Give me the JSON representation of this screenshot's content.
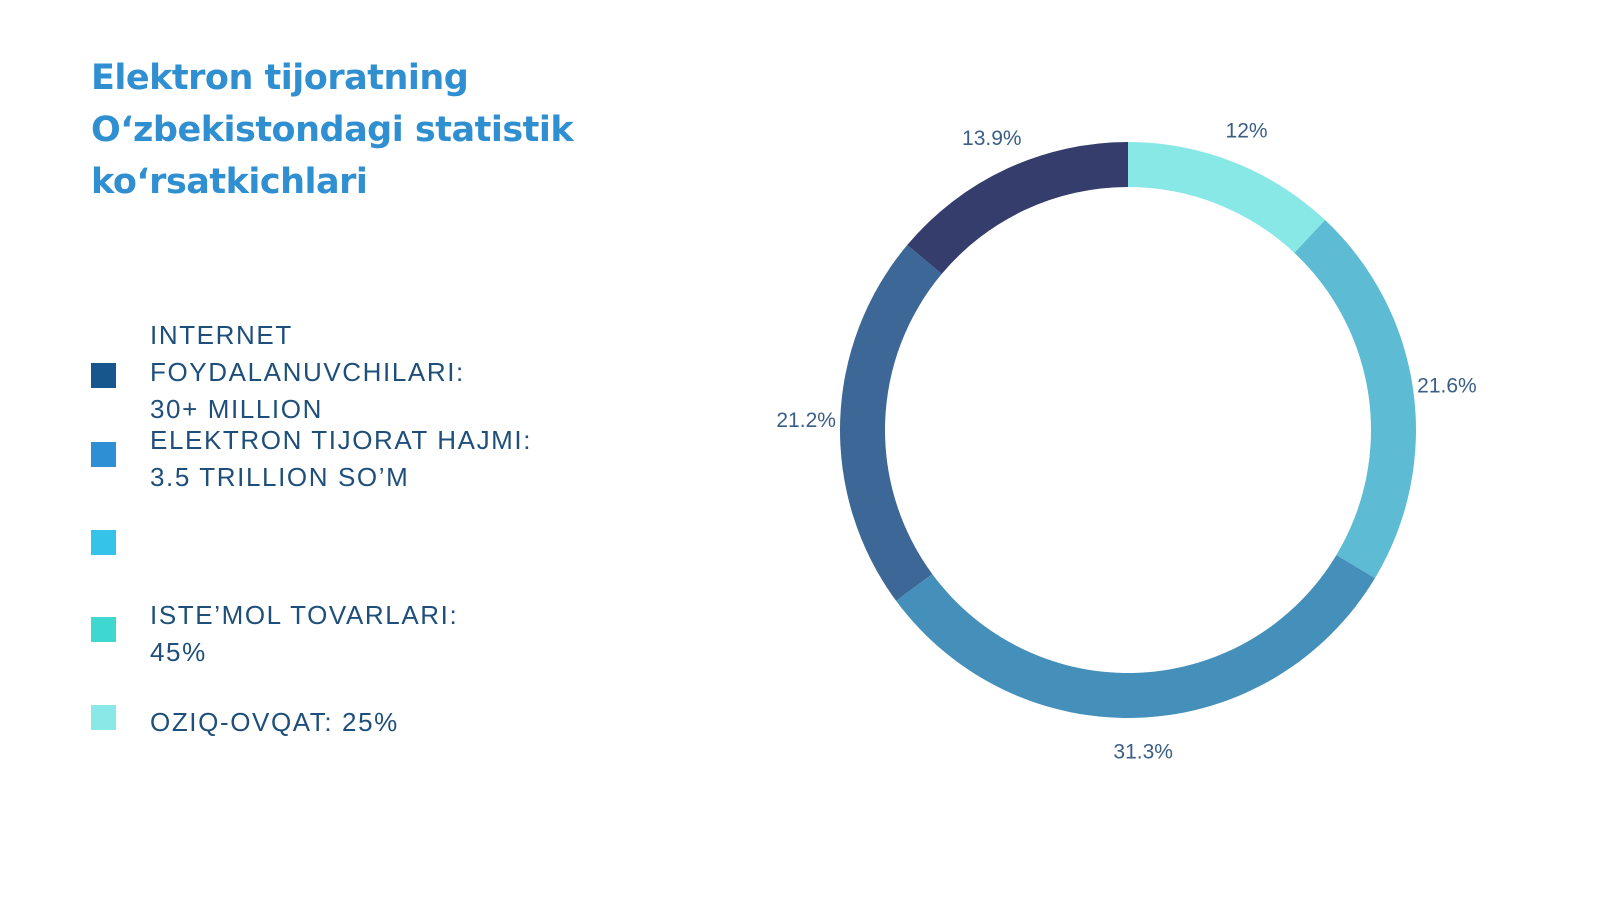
{
  "title_lines": [
    "Elektron tijoratning",
    "O‘zbekistondagi statistik",
    "ko‘rsatkichlari"
  ],
  "legend": [
    {
      "text": "INTERNET\nFOYDALANUVCHILARI:\n30+ MILLION",
      "color": "#17568c"
    },
    {
      "text": "ELEKTRON TIJORAT HAJMI:\n3.5 TRILLION SO’M",
      "color": "#2e8fd4"
    },
    {
      "text": "",
      "color": "#35c3ea"
    },
    {
      "text": "ISTE’MOL TOVARLARI:\n45%",
      "color": "#3fd8d1"
    },
    {
      "text": "OZIQ-OVQAT: 25%",
      "color": "#8ae9e6"
    }
  ],
  "chart_data": {
    "type": "pie",
    "donut": true,
    "start": "top",
    "direction": "clockwise",
    "slices": [
      {
        "value": 12.0,
        "label": "12%",
        "color": "#88e8e5"
      },
      {
        "value": 21.6,
        "label": "21.6%",
        "color": "#5dbbd4"
      },
      {
        "value": 31.3,
        "label": "31.3%",
        "color": "#4590bb"
      },
      {
        "value": 21.2,
        "label": "21.2%",
        "color": "#3c6796"
      },
      {
        "value": 13.9,
        "label": "13.9%",
        "color": "#343d6c"
      }
    ]
  }
}
